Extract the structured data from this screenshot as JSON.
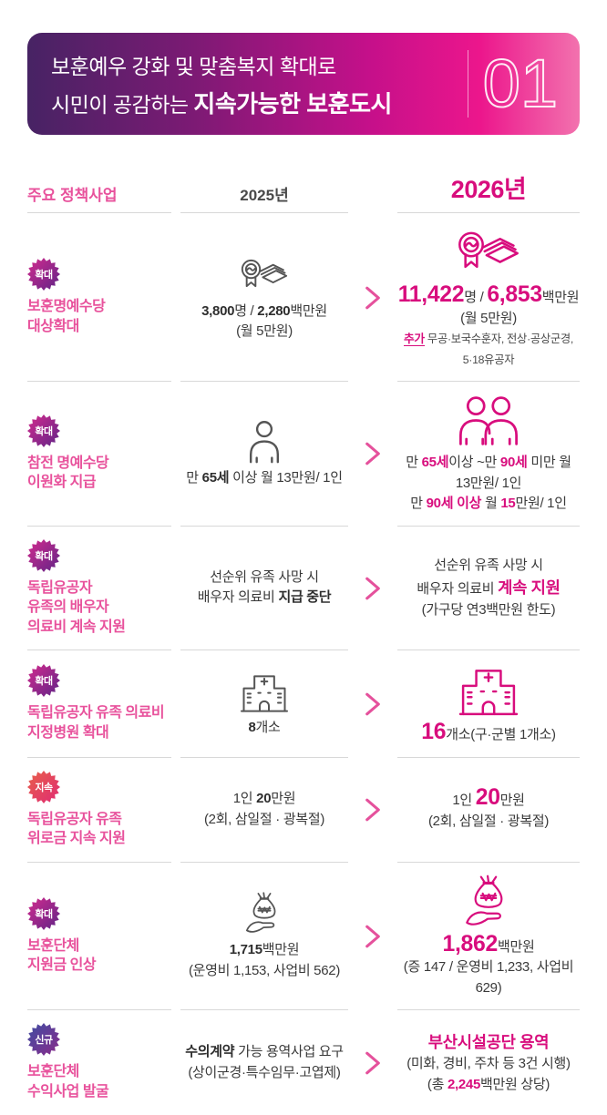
{
  "colors": {
    "accent": "#d80d7d",
    "title_pink": "#e8529c",
    "banner_from": "#472364",
    "banner_to": "#ec168c",
    "gray_icon": "#555555",
    "divider": "#d8d8d8"
  },
  "header": {
    "line1": "보훈예우 강화 및 맞춤복지 확대로",
    "line2_normal": "시민이 공감하는 ",
    "line2_bold": "지속가능한 보훈도시",
    "number": "01"
  },
  "table": {
    "col_headers": {
      "policy": "주요 정책사업",
      "y2025": "2025년",
      "y2026": "2026년"
    },
    "rows": [
      {
        "badge": {
          "label": "확대",
          "type": "expand"
        },
        "title": [
          "보훈명예수당",
          "대상확대"
        ],
        "c2025": {
          "icon": "medal-money",
          "lines": [
            [
              {
                "t": "3,800",
                "c": "b"
              },
              {
                "t": "명 / "
              },
              {
                "t": "2,280",
                "c": "b"
              },
              {
                "t": "백만원"
              }
            ],
            [
              {
                "t": "(월 5만원)"
              }
            ]
          ]
        },
        "c2026": {
          "icon": "medal-money",
          "lines": [
            [
              {
                "t": "11,422",
                "c": "xl"
              },
              {
                "t": "명 / "
              },
              {
                "t": "6,853",
                "c": "xl"
              },
              {
                "t": "백만원(월 5만원)"
              }
            ],
            [
              {
                "t": "추가",
                "c": "u"
              },
              {
                "t": " 무공·보국수훈자, 전상·공상군경, 5·18유공자",
                "c": "sm"
              }
            ]
          ]
        }
      },
      {
        "badge": {
          "label": "확대",
          "type": "expand"
        },
        "title": [
          "참전 명예수당",
          "이원화 지급"
        ],
        "c2025": {
          "icon": "person",
          "lines": [
            [
              {
                "t": "만 "
              },
              {
                "t": "65세",
                "c": "b"
              },
              {
                "t": " 이상 월 13만원/ 1인"
              }
            ]
          ]
        },
        "c2026": {
          "icon": "persons",
          "lines": [
            [
              {
                "t": "만 "
              },
              {
                "t": "65세",
                "c": "m"
              },
              {
                "t": "이상 ~만 "
              },
              {
                "t": "90세",
                "c": "m"
              },
              {
                "t": " 미만 월 13만원/ 1인"
              }
            ],
            [
              {
                "t": "만 "
              },
              {
                "t": "90세 이상",
                "c": "m"
              },
              {
                "t": " 월 "
              },
              {
                "t": "15",
                "c": "m"
              },
              {
                "t": "만원/ 1인"
              }
            ]
          ]
        }
      },
      {
        "badge": {
          "label": "확대",
          "type": "expand"
        },
        "title": [
          "독립유공자",
          "유족의 배우자",
          "의료비 계속 지원"
        ],
        "c2025": {
          "icon": null,
          "lines": [
            [
              {
                "t": "선순위 유족 사망 시"
              }
            ],
            [
              {
                "t": "배우자 의료비 "
              },
              {
                "t": "지급 중단",
                "c": "b"
              }
            ]
          ]
        },
        "c2026": {
          "icon": null,
          "lines": [
            [
              {
                "t": "선순위 유족 사망 시"
              }
            ],
            [
              {
                "t": "배우자 의료비 "
              },
              {
                "t": "계속 지원",
                "c": "mlg"
              }
            ],
            [
              {
                "t": "(가구당 연3백만원 한도)"
              }
            ]
          ]
        }
      },
      {
        "badge": {
          "label": "확대",
          "type": "expand"
        },
        "title": [
          "독립유공자 유족 의료비",
          "지정병원 확대"
        ],
        "c2025": {
          "icon": "hospital",
          "lines": [
            [
              {
                "t": "8",
                "c": "b"
              },
              {
                "t": "개소"
              }
            ]
          ]
        },
        "c2026": {
          "icon": "hospital",
          "lines": [
            [
              {
                "t": "16",
                "c": "xl"
              },
              {
                "t": "개소(구·군별 1개소)"
              }
            ]
          ]
        }
      },
      {
        "badge": {
          "label": "지속",
          "type": "continue"
        },
        "title": [
          "독립유공자 유족",
          "위로금 지속 지원"
        ],
        "c2025": {
          "icon": null,
          "lines": [
            [
              {
                "t": "1인 "
              },
              {
                "t": "20",
                "c": "b"
              },
              {
                "t": "만원"
              }
            ],
            [
              {
                "t": "(2회, 삼일절 · 광복절)"
              }
            ]
          ]
        },
        "c2026": {
          "icon": null,
          "lines": [
            [
              {
                "t": "1인 "
              },
              {
                "t": "20",
                "c": "xl"
              },
              {
                "t": "만원"
              }
            ],
            [
              {
                "t": "(2회, 삼일절 · 광복절)"
              }
            ]
          ]
        }
      },
      {
        "badge": {
          "label": "확대",
          "type": "expand"
        },
        "title": [
          "보훈단체",
          "지원금 인상"
        ],
        "c2025": {
          "icon": "moneybag-hand",
          "lines": [
            [
              {
                "t": "1,715",
                "c": "b"
              },
              {
                "t": "백만원"
              }
            ],
            [
              {
                "t": "(운영비 1,153, 사업비 562)"
              }
            ]
          ]
        },
        "c2026": {
          "icon": "moneybag-hand",
          "lines": [
            [
              {
                "t": "1,862",
                "c": "xl"
              },
              {
                "t": "백만원"
              }
            ],
            [
              {
                "t": "(증 147 / 운영비 1,233, 사업비 629)"
              }
            ]
          ]
        }
      },
      {
        "badge": {
          "label": "신규",
          "type": "new"
        },
        "title": [
          "보훈단체",
          "수익사업 발굴"
        ],
        "c2025": {
          "icon": null,
          "lines": [
            [
              {
                "t": "수의계약",
                "c": "b"
              },
              {
                "t": " 가능 용역사업 요구"
              }
            ],
            [
              {
                "t": "(상이군경·특수임무·고엽제)"
              }
            ]
          ]
        },
        "c2026": {
          "icon": null,
          "lines": [
            [
              {
                "t": "부산시설공단 용역",
                "c": "mlg"
              }
            ],
            [
              {
                "t": "(미화, 경비, 주차 등 3건 시행)"
              }
            ],
            [
              {
                "t": "(총 "
              },
              {
                "t": "2,245",
                "c": "m"
              },
              {
                "t": "백만원 상당)"
              }
            ]
          ]
        }
      }
    ]
  }
}
